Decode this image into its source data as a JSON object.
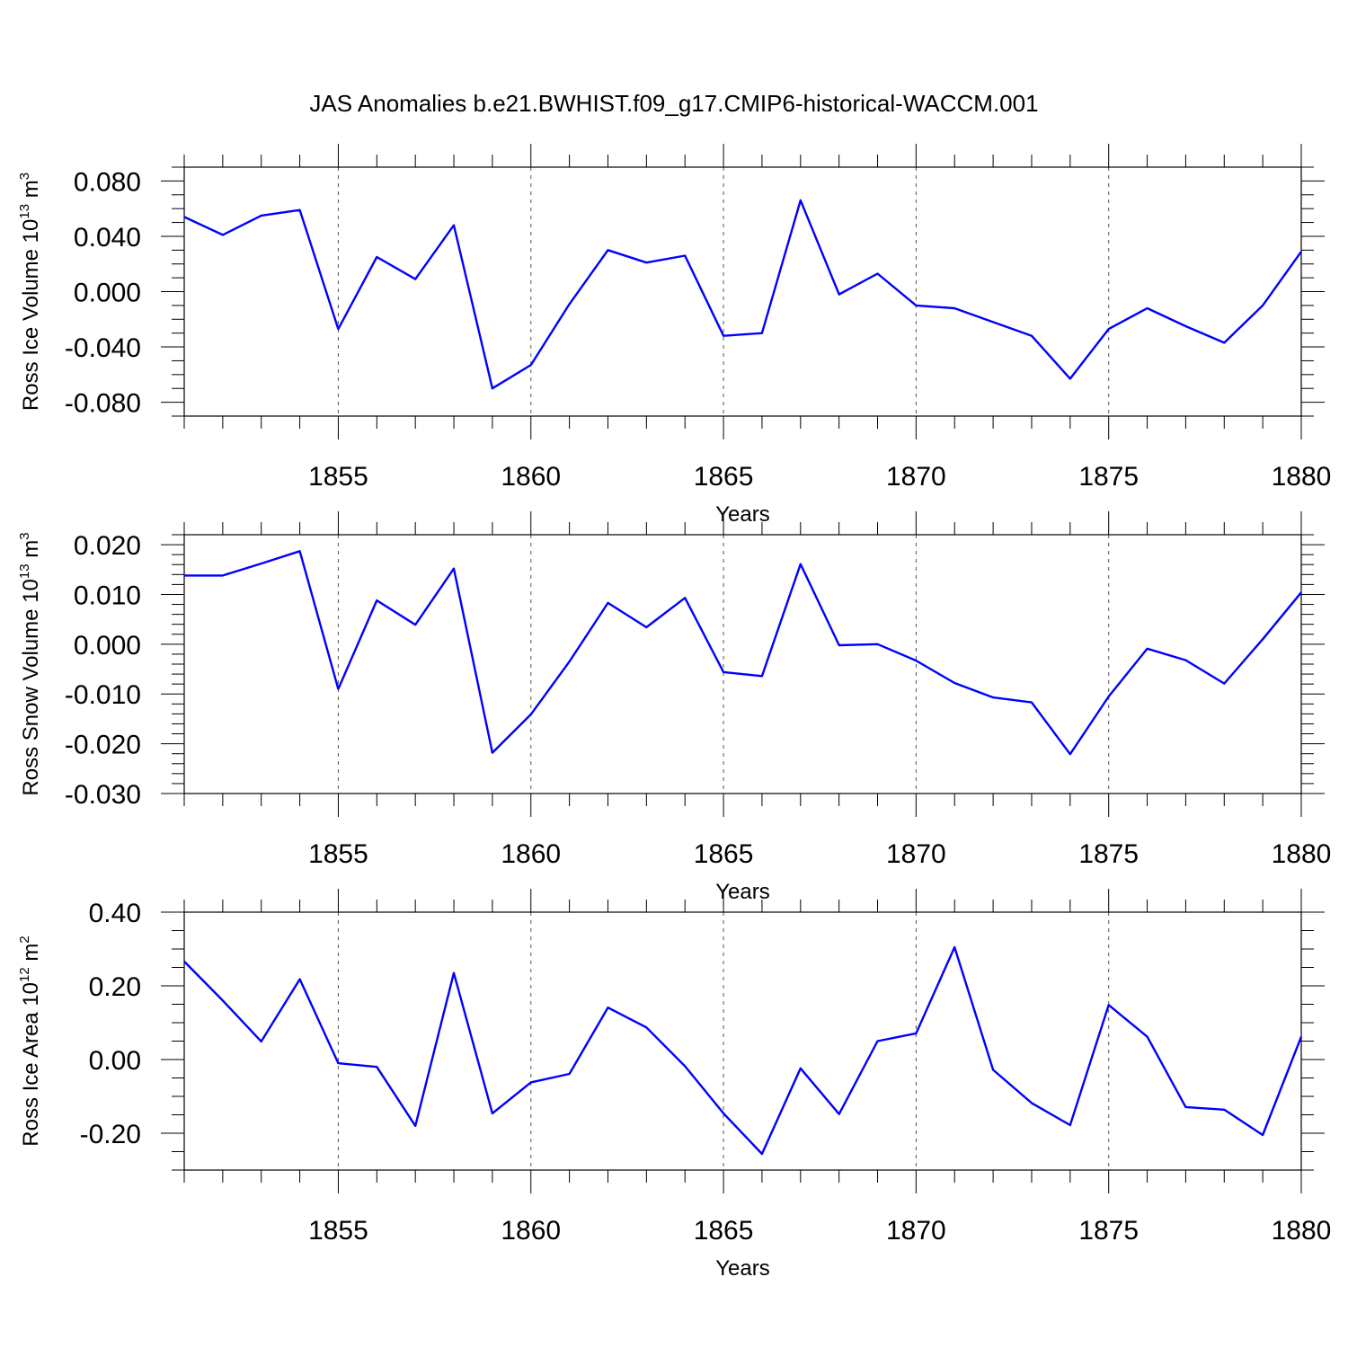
{
  "title": "JAS Anomalies b.e21.BWHIST.f09_g17.CMIP6-historical-WACCM.001",
  "colors": {
    "line": "#0000ff",
    "axes": "#000000",
    "grid": "#000000"
  },
  "x_ticks": [
    1855,
    1860,
    1865,
    1870,
    1875,
    1880
  ],
  "chart_data": [
    {
      "type": "line",
      "ylabel": {
        "main": "Ross Ice Volume 10",
        "sup": "13",
        "unit": " m",
        "unit_sup": "3"
      },
      "xlabel": "Years",
      "xlim": [
        1851,
        1880
      ],
      "ylim": [
        -0.09,
        0.09
      ],
      "yticks": [
        -0.08,
        -0.04,
        0.0,
        0.04,
        0.08
      ],
      "ytick_labels": [
        "-0.080",
        "-0.040",
        "0.000",
        "0.040",
        "0.080"
      ],
      "minor_step": 0.01,
      "grid": "dashed vertical at major x ticks",
      "x": [
        1851,
        1852,
        1853,
        1854,
        1855,
        1856,
        1857,
        1858,
        1859,
        1860,
        1861,
        1862,
        1863,
        1864,
        1865,
        1866,
        1867,
        1868,
        1869,
        1870,
        1871,
        1872,
        1873,
        1874,
        1875,
        1876,
        1877,
        1878,
        1879,
        1880
      ],
      "values": [
        0.054,
        0.041,
        0.055,
        0.059,
        -0.027,
        0.025,
        0.009,
        0.048,
        -0.07,
        -0.053,
        -0.009,
        0.03,
        0.021,
        0.026,
        -0.032,
        -0.03,
        0.066,
        -0.002,
        0.013,
        -0.01,
        -0.012,
        -0.022,
        -0.032,
        -0.063,
        -0.027,
        -0.012,
        -0.025,
        -0.037,
        -0.01,
        0.029
      ]
    },
    {
      "type": "line",
      "ylabel": {
        "main": "Ross Snow Volume 10",
        "sup": "13",
        "unit": " m",
        "unit_sup": "3"
      },
      "xlabel": "Years",
      "xlim": [
        1851,
        1880
      ],
      "ylim": [
        -0.03,
        0.022
      ],
      "yticks": [
        -0.03,
        -0.02,
        -0.01,
        0.0,
        0.01,
        0.02
      ],
      "ytick_labels": [
        "-0.030",
        "-0.020",
        "-0.010",
        "0.000",
        "0.010",
        "0.020"
      ],
      "minor_step": 0.002,
      "grid": "dashed vertical at major x ticks",
      "x": [
        1851,
        1852,
        1853,
        1854,
        1855,
        1856,
        1857,
        1858,
        1859,
        1860,
        1861,
        1862,
        1863,
        1864,
        1865,
        1866,
        1867,
        1868,
        1869,
        1870,
        1871,
        1872,
        1873,
        1874,
        1875,
        1876,
        1877,
        1878,
        1879,
        1880
      ],
      "values": [
        0.0138,
        0.0138,
        0.0162,
        0.0187,
        -0.009,
        0.0088,
        0.0039,
        0.0152,
        -0.0218,
        -0.0141,
        -0.0035,
        0.0083,
        0.0034,
        0.0093,
        -0.0056,
        -0.0064,
        0.0161,
        -0.0002,
        0.0,
        -0.0033,
        -0.0078,
        -0.0107,
        -0.0117,
        -0.0221,
        -0.0105,
        -0.0009,
        -0.0032,
        -0.0079,
        0.001,
        0.0104
      ]
    },
    {
      "type": "line",
      "ylabel": {
        "main": "Ross Ice Area 10",
        "sup": "12",
        "unit": " m",
        "unit_sup": "2"
      },
      "xlabel": "Years",
      "xlim": [
        1851,
        1880
      ],
      "ylim": [
        -0.3,
        0.4
      ],
      "yticks": [
        -0.2,
        0.0,
        0.2,
        0.4
      ],
      "ytick_labels": [
        "-0.20",
        "0.00",
        "0.20",
        "0.40"
      ],
      "minor_step": 0.05,
      "grid": "dashed vertical at major x ticks",
      "x": [
        1851,
        1852,
        1853,
        1854,
        1855,
        1856,
        1857,
        1858,
        1859,
        1860,
        1861,
        1862,
        1863,
        1864,
        1865,
        1866,
        1867,
        1868,
        1869,
        1870,
        1871,
        1872,
        1873,
        1874,
        1875,
        1876,
        1877,
        1878,
        1879,
        1880
      ],
      "values": [
        0.266,
        0.16,
        0.049,
        0.218,
        -0.01,
        -0.02,
        -0.18,
        0.235,
        -0.146,
        -0.062,
        -0.039,
        0.141,
        0.087,
        -0.018,
        -0.146,
        -0.256,
        -0.024,
        -0.148,
        0.05,
        0.071,
        0.305,
        -0.028,
        -0.118,
        -0.178,
        0.148,
        0.062,
        -0.129,
        -0.136,
        -0.205,
        0.062
      ]
    }
  ]
}
